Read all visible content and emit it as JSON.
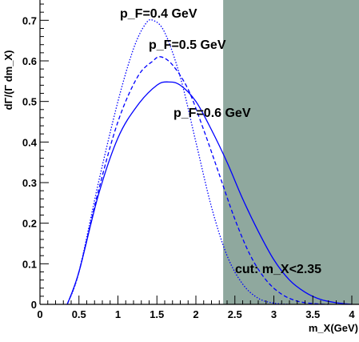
{
  "chart_data": {
    "type": "line",
    "title": "",
    "xlabel": "m_X(GeV)",
    "ylabel": "dΓ/(Γ dm_X)",
    "xlim": [
      0,
      4
    ],
    "ylim": [
      0,
      0.75
    ],
    "grid": false,
    "x_ticks": [
      0,
      0.5,
      1,
      1.5,
      2,
      2.5,
      3,
      3.5,
      4
    ],
    "x_tick_labels": [
      "0",
      "0.5",
      "1",
      "1.5",
      "2",
      "2.5",
      "3",
      "3.5",
      "4"
    ],
    "y_ticks": [
      0,
      0.1,
      0.2,
      0.3,
      0.4,
      0.5,
      0.6,
      0.7
    ],
    "y_tick_labels": [
      "0",
      "0.1",
      "0.2",
      "0.3",
      "0.4",
      "0.5",
      "0.6",
      "0.7"
    ],
    "cut_region": {
      "x_from": 2.35,
      "x_to": 4,
      "color": "#8fa89e"
    },
    "series": [
      {
        "label": "pF=0.4 GeV",
        "style": "dotted",
        "x": [
          0.35,
          0.5,
          0.75,
          1.0,
          1.2,
          1.35,
          1.45,
          1.6,
          1.8,
          2.0,
          2.2,
          2.4,
          2.6,
          2.8,
          3.0,
          3.2
        ],
        "y": [
          0.0,
          0.08,
          0.3,
          0.5,
          0.63,
          0.69,
          0.7,
          0.67,
          0.56,
          0.4,
          0.24,
          0.12,
          0.05,
          0.015,
          0.003,
          0.0
        ]
      },
      {
        "label": "pF=0.5 GeV",
        "style": "dashed",
        "x": [
          0.35,
          0.5,
          0.75,
          1.0,
          1.25,
          1.45,
          1.55,
          1.7,
          1.9,
          2.1,
          2.3,
          2.5,
          2.7,
          2.9,
          3.1,
          3.3,
          3.5,
          3.7
        ],
        "y": [
          0.0,
          0.08,
          0.28,
          0.45,
          0.56,
          0.6,
          0.61,
          0.59,
          0.53,
          0.43,
          0.32,
          0.21,
          0.12,
          0.06,
          0.025,
          0.008,
          0.002,
          0.0
        ]
      },
      {
        "label": "pF=0.6 GeV",
        "style": "solid",
        "x": [
          0.35,
          0.5,
          0.75,
          1.0,
          1.25,
          1.5,
          1.65,
          1.8,
          2.0,
          2.2,
          2.4,
          2.6,
          2.8,
          3.0,
          3.2,
          3.4,
          3.6,
          3.8,
          4.0
        ],
        "y": [
          0.0,
          0.08,
          0.27,
          0.41,
          0.49,
          0.54,
          0.548,
          0.54,
          0.5,
          0.43,
          0.35,
          0.26,
          0.18,
          0.11,
          0.06,
          0.03,
          0.012,
          0.004,
          0.0
        ]
      }
    ],
    "annotations": {
      "label_04": "p_F=0.4 GeV",
      "label_05": "p_F=0.5 GeV",
      "label_06": "p_F=0.6 GeV",
      "cut": "cut: m_X<2.35"
    }
  }
}
